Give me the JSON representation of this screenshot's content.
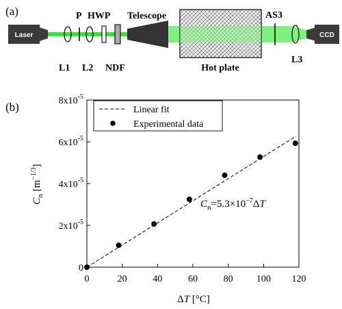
{
  "panel_a": {
    "label": "(a)",
    "components": {
      "laser": "Laser",
      "ccd": "CCD",
      "p": "P",
      "hwp": "HWP",
      "telescope": "Telescope",
      "as3": "AS3",
      "l1": "L1",
      "l2": "L2",
      "ndf": "NDF",
      "hot_plate": "Hot plate",
      "l3": "L3"
    },
    "beam_color": "#33e633"
  },
  "panel_b": {
    "label": "(b)",
    "equation": {
      "var": "C",
      "sub": "n",
      "mid": "=5.3×10",
      "exp": "−7",
      "delta": "Δ",
      "t": "T"
    }
  },
  "chart_data": {
    "type": "scatter",
    "xlabel": {
      "delta": "Δ",
      "var": "T",
      "unit": " [°C]"
    },
    "ylabel": {
      "var": "C",
      "sub": "n",
      "unit_open": " [m",
      "unit_exp": "−1/3",
      "unit_close": "]"
    },
    "xlim": [
      0,
      120
    ],
    "ylim": [
      0,
      8e-05
    ],
    "x_ticks": [
      0,
      20,
      40,
      60,
      80,
      100,
      120
    ],
    "x_tick_labels": [
      "0",
      "20",
      "40",
      "60",
      "80",
      "100",
      "120"
    ],
    "y_ticks": [
      0,
      2e-05,
      4e-05,
      6e-05,
      8e-05
    ],
    "y_tick_labels": [
      {
        "base": "0",
        "exp": ""
      },
      {
        "base": "2x10",
        "exp": "-5"
      },
      {
        "base": "4x10",
        "exp": "-5"
      },
      {
        "base": "6x10",
        "exp": "-5"
      },
      {
        "base": "8x10",
        "exp": "-5"
      }
    ],
    "legend": {
      "position": "top-center",
      "entries": [
        "Linear fit",
        "Experimental data"
      ]
    },
    "series": [
      {
        "name": "Experimental data",
        "kind": "points",
        "x": [
          0,
          18,
          38,
          58,
          78,
          98,
          118
        ],
        "y": [
          0,
          1.05e-05,
          2.07e-05,
          3.25e-05,
          4.4e-05,
          5.27e-05,
          5.93e-05
        ]
      },
      {
        "name": "Linear fit",
        "kind": "dashed-line",
        "x": [
          0,
          118
        ],
        "y": [
          0,
          6.25e-05
        ]
      }
    ],
    "grid": false
  }
}
